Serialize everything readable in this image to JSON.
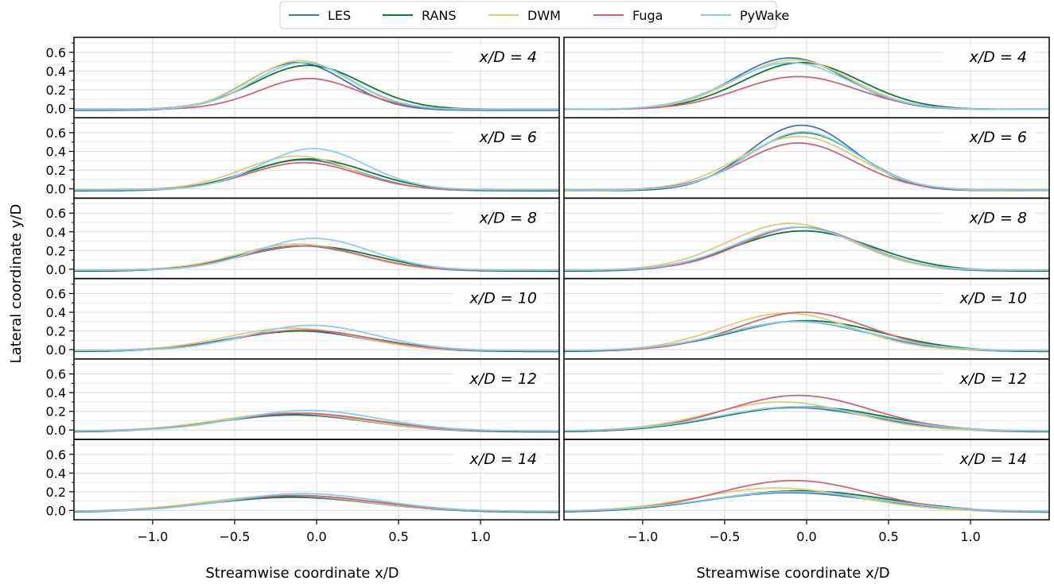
{
  "chart_data": {
    "type": "line",
    "ylabel": "Lateral coordinate y/D",
    "xlabel": "Streamwise coordinate x/D",
    "xlim": [
      -1.48,
      1.48
    ],
    "ylim": [
      -0.1,
      0.76
    ],
    "x_ticks": [
      -1.0,
      -0.5,
      0.0,
      0.5,
      1.0
    ],
    "x_tick_labels": [
      "−1.0",
      "−0.5",
      "0.0",
      "0.5",
      "1.0"
    ],
    "y_ticks": [
      0.0,
      0.2,
      0.4,
      0.6
    ],
    "y_tick_labels": [
      "0.0",
      "0.2",
      "0.4",
      "0.6"
    ],
    "grid": true,
    "legend": {
      "placement": "top-center",
      "entries": [
        {
          "name": "LES",
          "color": "#4477AA"
        },
        {
          "name": "RANS",
          "color": "#117733"
        },
        {
          "name": "DWM",
          "color": "#DDCC77"
        },
        {
          "name": "Fuga",
          "color": "#CC6677"
        },
        {
          "name": "PyWake",
          "color": "#88CCEE"
        }
      ]
    },
    "panels": [
      {
        "column": 0,
        "row": 0,
        "label": "x/D = 4",
        "series": [
          {
            "name": "LES",
            "peak": 0.51,
            "center": -0.12,
            "width": 0.3,
            "baseline": -0.02
          },
          {
            "name": "RANS",
            "peak": 0.47,
            "center": -0.05,
            "width": 0.33,
            "baseline": -0.01
          },
          {
            "name": "DWM",
            "peak": 0.52,
            "center": -0.1,
            "width": 0.3,
            "baseline": -0.01
          },
          {
            "name": "Fuga",
            "peak": 0.33,
            "center": -0.05,
            "width": 0.3,
            "baseline": -0.01
          },
          {
            "name": "PyWake",
            "peak": 0.5,
            "center": -0.08,
            "width": 0.3,
            "baseline": -0.01
          }
        ]
      },
      {
        "column": 0,
        "row": 1,
        "label": "x/D = 6",
        "series": [
          {
            "name": "LES",
            "peak": 0.33,
            "center": -0.08,
            "width": 0.34,
            "baseline": -0.02
          },
          {
            "name": "RANS",
            "peak": 0.34,
            "center": -0.05,
            "width": 0.36,
            "baseline": -0.02
          },
          {
            "name": "DWM",
            "peak": 0.36,
            "center": -0.12,
            "width": 0.33,
            "baseline": -0.01
          },
          {
            "name": "Fuga",
            "peak": 0.29,
            "center": -0.08,
            "width": 0.33,
            "baseline": -0.01
          },
          {
            "name": "PyWake",
            "peak": 0.44,
            "center": -0.02,
            "width": 0.32,
            "baseline": -0.01
          }
        ]
      },
      {
        "column": 0,
        "row": 2,
        "label": "x/D = 8",
        "series": [
          {
            "name": "LES",
            "peak": 0.27,
            "center": -0.1,
            "width": 0.38,
            "baseline": -0.02
          },
          {
            "name": "RANS",
            "peak": 0.27,
            "center": -0.05,
            "width": 0.4,
            "baseline": -0.02
          },
          {
            "name": "DWM",
            "peak": 0.28,
            "center": -0.12,
            "width": 0.36,
            "baseline": -0.01
          },
          {
            "name": "Fuga",
            "peak": 0.26,
            "center": -0.08,
            "width": 0.36,
            "baseline": -0.01
          },
          {
            "name": "PyWake",
            "peak": 0.34,
            "center": -0.02,
            "width": 0.35,
            "baseline": -0.01
          }
        ]
      },
      {
        "column": 0,
        "row": 3,
        "label": "x/D = 10",
        "series": [
          {
            "name": "LES",
            "peak": 0.22,
            "center": -0.12,
            "width": 0.42,
            "baseline": -0.02
          },
          {
            "name": "RANS",
            "peak": 0.22,
            "center": -0.08,
            "width": 0.44,
            "baseline": -0.02
          },
          {
            "name": "DWM",
            "peak": 0.24,
            "center": -0.15,
            "width": 0.4,
            "baseline": -0.01
          },
          {
            "name": "Fuga",
            "peak": 0.22,
            "center": -0.08,
            "width": 0.4,
            "baseline": -0.01
          },
          {
            "name": "PyWake",
            "peak": 0.27,
            "center": -0.03,
            "width": 0.39,
            "baseline": -0.01
          }
        ]
      },
      {
        "column": 0,
        "row": 4,
        "label": "x/D = 12",
        "series": [
          {
            "name": "LES",
            "peak": 0.18,
            "center": -0.14,
            "width": 0.46,
            "baseline": -0.02
          },
          {
            "name": "RANS",
            "peak": 0.19,
            "center": -0.1,
            "width": 0.48,
            "baseline": -0.02
          },
          {
            "name": "DWM",
            "peak": 0.19,
            "center": -0.16,
            "width": 0.44,
            "baseline": -0.01
          },
          {
            "name": "Fuga",
            "peak": 0.19,
            "center": -0.1,
            "width": 0.44,
            "baseline": -0.01
          },
          {
            "name": "PyWake",
            "peak": 0.22,
            "center": -0.05,
            "width": 0.43,
            "baseline": -0.01
          }
        ]
      },
      {
        "column": 0,
        "row": 5,
        "label": "x/D = 14",
        "series": [
          {
            "name": "LES",
            "peak": 0.16,
            "center": -0.15,
            "width": 0.5,
            "baseline": -0.02
          },
          {
            "name": "RANS",
            "peak": 0.17,
            "center": -0.12,
            "width": 0.52,
            "baseline": -0.02
          },
          {
            "name": "DWM",
            "peak": 0.17,
            "center": -0.18,
            "width": 0.48,
            "baseline": -0.01
          },
          {
            "name": "Fuga",
            "peak": 0.17,
            "center": -0.12,
            "width": 0.47,
            "baseline": -0.01
          },
          {
            "name": "PyWake",
            "peak": 0.19,
            "center": -0.08,
            "width": 0.46,
            "baseline": -0.01
          }
        ]
      },
      {
        "column": 1,
        "row": 0,
        "label": "x/D = 4",
        "series": [
          {
            "name": "LES",
            "peak": 0.55,
            "center": -0.1,
            "width": 0.34,
            "baseline": -0.01
          },
          {
            "name": "RANS",
            "peak": 0.5,
            "center": -0.03,
            "width": 0.36,
            "baseline": -0.01
          },
          {
            "name": "DWM",
            "peak": 0.53,
            "center": -0.08,
            "width": 0.35,
            "baseline": -0.01
          },
          {
            "name": "Fuga",
            "peak": 0.35,
            "center": -0.05,
            "width": 0.36,
            "baseline": -0.01
          },
          {
            "name": "PyWake",
            "peak": 0.5,
            "center": -0.1,
            "width": 0.36,
            "baseline": -0.01
          }
        ]
      },
      {
        "column": 1,
        "row": 1,
        "label": "x/D = 6",
        "series": [
          {
            "name": "LES",
            "peak": 0.7,
            "center": -0.03,
            "width": 0.32,
            "baseline": -0.02
          },
          {
            "name": "RANS",
            "peak": 0.62,
            "center": -0.02,
            "width": 0.34,
            "baseline": -0.02
          },
          {
            "name": "DWM",
            "peak": 0.58,
            "center": -0.05,
            "width": 0.36,
            "baseline": -0.02
          },
          {
            "name": "Fuga",
            "peak": 0.5,
            "center": -0.05,
            "width": 0.34,
            "baseline": -0.01
          },
          {
            "name": "PyWake",
            "peak": 0.62,
            "center": -0.02,
            "width": 0.33,
            "baseline": -0.01
          }
        ]
      },
      {
        "column": 1,
        "row": 2,
        "label": "x/D = 8",
        "series": [
          {
            "name": "LES",
            "peak": 0.47,
            "center": -0.05,
            "width": 0.38,
            "baseline": -0.02
          },
          {
            "name": "RANS",
            "peak": 0.43,
            "center": -0.02,
            "width": 0.42,
            "baseline": -0.02
          },
          {
            "name": "DWM",
            "peak": 0.5,
            "center": -0.1,
            "width": 0.38,
            "baseline": -0.01
          },
          {
            "name": "Fuga",
            "peak": 0.46,
            "center": -0.03,
            "width": 0.37,
            "baseline": -0.01
          },
          {
            "name": "PyWake",
            "peak": 0.46,
            "center": -0.05,
            "width": 0.38,
            "baseline": -0.01
          }
        ]
      },
      {
        "column": 1,
        "row": 3,
        "label": "x/D = 10",
        "series": [
          {
            "name": "LES",
            "peak": 0.32,
            "center": -0.06,
            "width": 0.44,
            "baseline": -0.02
          },
          {
            "name": "RANS",
            "peak": 0.33,
            "center": 0.0,
            "width": 0.46,
            "baseline": -0.02
          },
          {
            "name": "DWM",
            "peak": 0.4,
            "center": -0.12,
            "width": 0.4,
            "baseline": -0.01
          },
          {
            "name": "Fuga",
            "peak": 0.41,
            "center": -0.02,
            "width": 0.4,
            "baseline": -0.01
          },
          {
            "name": "PyWake",
            "peak": 0.31,
            "center": -0.05,
            "width": 0.44,
            "baseline": -0.01
          }
        ]
      },
      {
        "column": 1,
        "row": 4,
        "label": "x/D = 12",
        "series": [
          {
            "name": "LES",
            "peak": 0.26,
            "center": -0.08,
            "width": 0.48,
            "baseline": -0.02
          },
          {
            "name": "RANS",
            "peak": 0.27,
            "center": -0.02,
            "width": 0.5,
            "baseline": -0.02
          },
          {
            "name": "DWM",
            "peak": 0.31,
            "center": -0.15,
            "width": 0.44,
            "baseline": -0.01
          },
          {
            "name": "Fuga",
            "peak": 0.38,
            "center": -0.05,
            "width": 0.44,
            "baseline": -0.01
          },
          {
            "name": "PyWake",
            "peak": 0.26,
            "center": -0.06,
            "width": 0.48,
            "baseline": -0.01
          }
        ]
      },
      {
        "column": 1,
        "row": 5,
        "label": "x/D = 14",
        "series": [
          {
            "name": "LES",
            "peak": 0.21,
            "center": -0.1,
            "width": 0.52,
            "baseline": -0.02
          },
          {
            "name": "RANS",
            "peak": 0.23,
            "center": -0.04,
            "width": 0.54,
            "baseline": -0.02
          },
          {
            "name": "DWM",
            "peak": 0.25,
            "center": -0.18,
            "width": 0.48,
            "baseline": -0.01
          },
          {
            "name": "Fuga",
            "peak": 0.33,
            "center": -0.08,
            "width": 0.46,
            "baseline": -0.01
          },
          {
            "name": "PyWake",
            "peak": 0.21,
            "center": -0.08,
            "width": 0.52,
            "baseline": -0.01
          }
        ]
      }
    ]
  }
}
